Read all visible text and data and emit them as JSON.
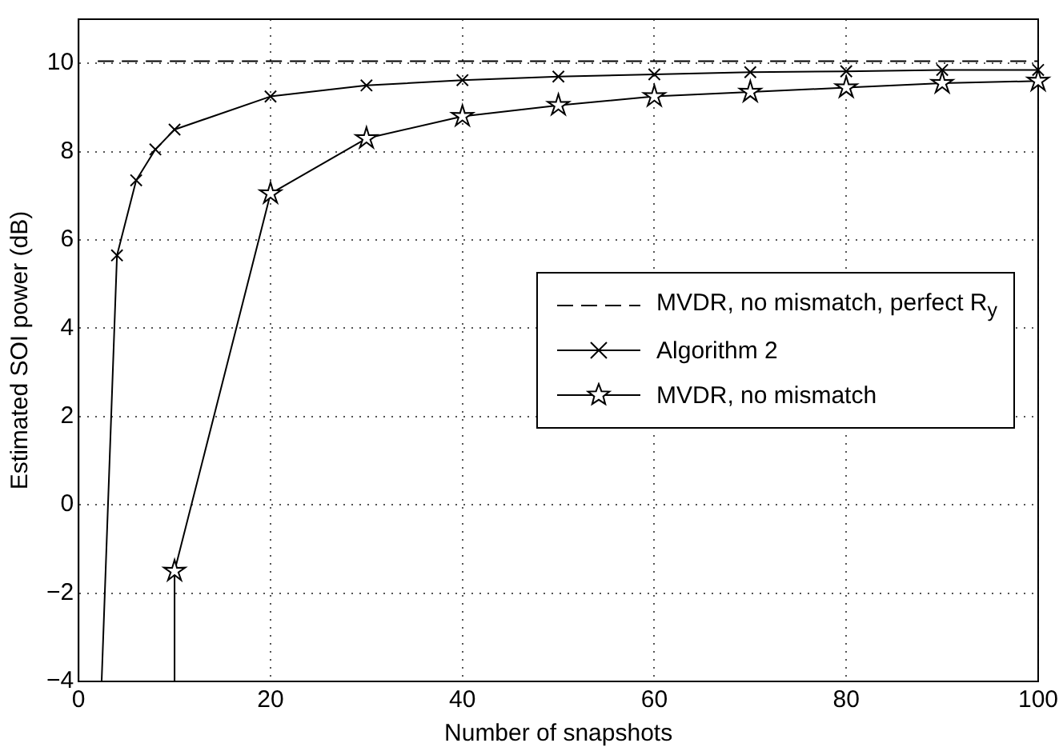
{
  "chart_data": {
    "type": "line",
    "xlabel": "Number of snapshots",
    "ylabel": "Estimated SOI power (dB)",
    "xlim": [
      0,
      100
    ],
    "xticks": [
      0,
      20,
      40,
      60,
      80,
      100
    ],
    "ylim": [
      -4,
      11
    ],
    "yticks": [
      -4,
      -2,
      0,
      2,
      4,
      6,
      8,
      10
    ],
    "grid": true,
    "legend": "right",
    "series": [
      {
        "name": "MVDR, no mismatch, perfect R$_{y}$",
        "color": "#000000",
        "line_style": "dashed",
        "marker": "none",
        "x": [
          2,
          100
        ],
        "values": [
          10.05,
          10.05
        ]
      },
      {
        "name": "Algorithm 2",
        "color": "#000000",
        "line_style": "solid",
        "marker": "cross",
        "x": [
          2.4,
          4,
          6,
          8,
          10,
          20,
          30,
          40,
          50,
          60,
          70,
          80,
          90,
          100
        ],
        "values": [
          -4,
          5.65,
          7.35,
          8.05,
          8.5,
          9.25,
          9.5,
          9.62,
          9.7,
          9.75,
          9.8,
          9.82,
          9.85,
          9.85
        ]
      },
      {
        "name": "MVDR, no mismatch",
        "color": "#000000",
        "line_style": "solid",
        "marker": "star",
        "x": [
          10,
          10,
          20,
          30,
          40,
          50,
          60,
          70,
          80,
          90,
          100
        ],
        "values": [
          -4,
          -1.5,
          7.05,
          8.3,
          8.8,
          9.05,
          9.25,
          9.35,
          9.45,
          9.55,
          9.6
        ]
      }
    ]
  }
}
